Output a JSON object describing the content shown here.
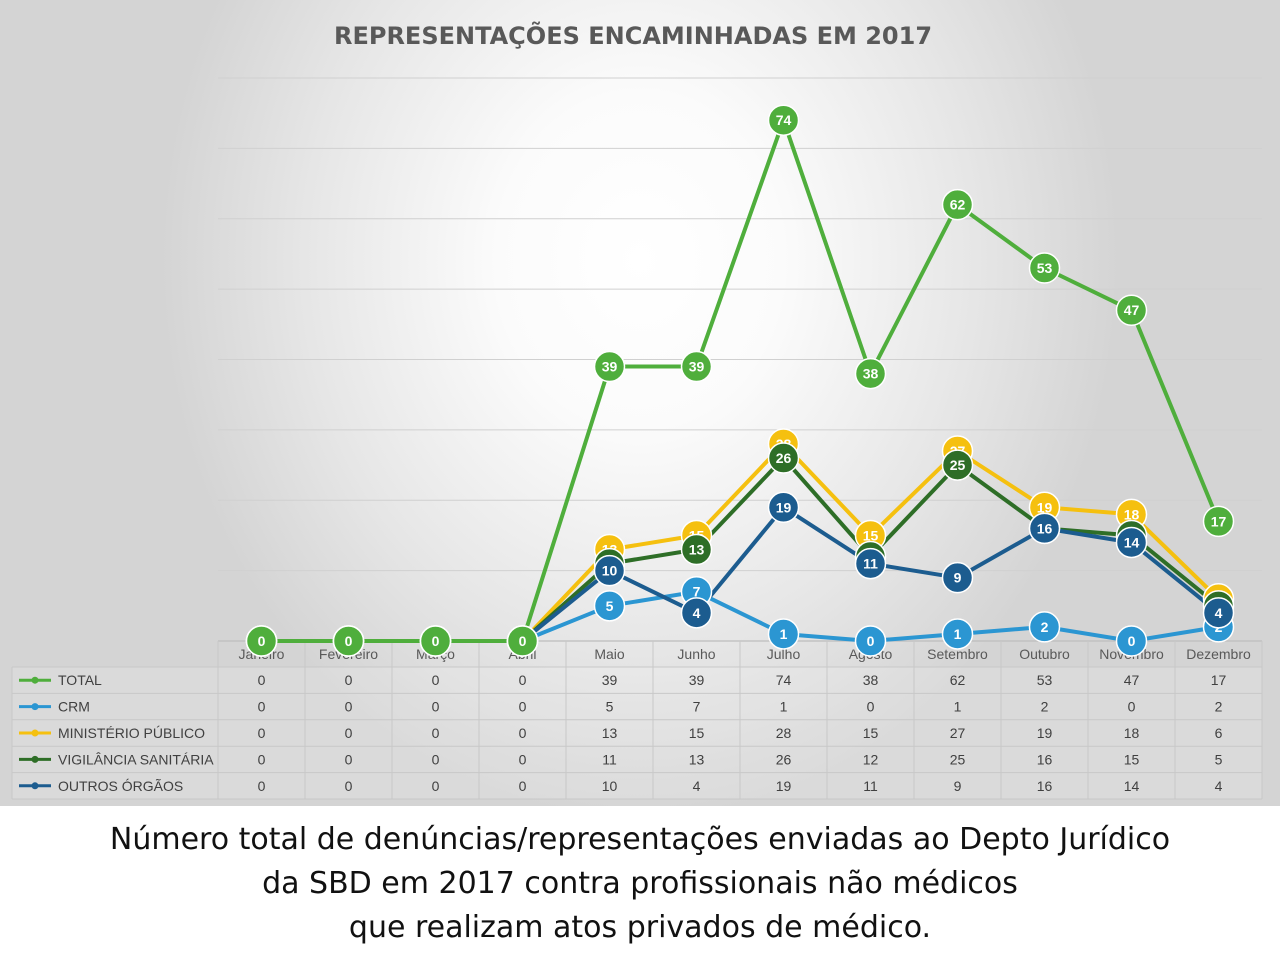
{
  "chart_data": {
    "type": "line",
    "title": "REPRESENTAÇÕES ENCAMINHADAS EM 2017",
    "categories": [
      "Janeiro",
      "Fevereiro",
      "Março",
      "Abril",
      "Maio",
      "Junho",
      "Julho",
      "Agosto",
      "Setembro",
      "Outubro",
      "Novembro",
      "Dezembro"
    ],
    "series": [
      {
        "name": "TOTAL",
        "color": "#4fae3c",
        "values": [
          0,
          0,
          0,
          0,
          39,
          39,
          74,
          38,
          62,
          53,
          47,
          17
        ]
      },
      {
        "name": "CRM",
        "color": "#2b96d2",
        "values": [
          0,
          0,
          0,
          0,
          5,
          7,
          1,
          0,
          1,
          2,
          0,
          2
        ]
      },
      {
        "name": "MINISTÉRIO PÚBLICO",
        "color": "#f5c00f",
        "values": [
          0,
          0,
          0,
          0,
          13,
          15,
          28,
          15,
          27,
          19,
          18,
          6
        ]
      },
      {
        "name": "VIGILÂNCIA SANITÁRIA",
        "color": "#2e6e27",
        "values": [
          0,
          0,
          0,
          0,
          11,
          13,
          26,
          12,
          25,
          16,
          15,
          5
        ]
      },
      {
        "name": "OUTROS ÓRGÃOS",
        "color": "#1c5c8f",
        "values": [
          0,
          0,
          0,
          0,
          10,
          4,
          19,
          11,
          9,
          16,
          14,
          4
        ]
      }
    ],
    "ylim": [
      0,
      80
    ],
    "grid": true,
    "data_table": true,
    "xlabel": "",
    "ylabel": ""
  },
  "caption": {
    "line1": "Número total de denúncias/representações enviadas ao Depto Jurídico",
    "line2": "da SBD em 2017 contra profissionais não médicos",
    "line3": "que realizam atos privados de médico."
  }
}
